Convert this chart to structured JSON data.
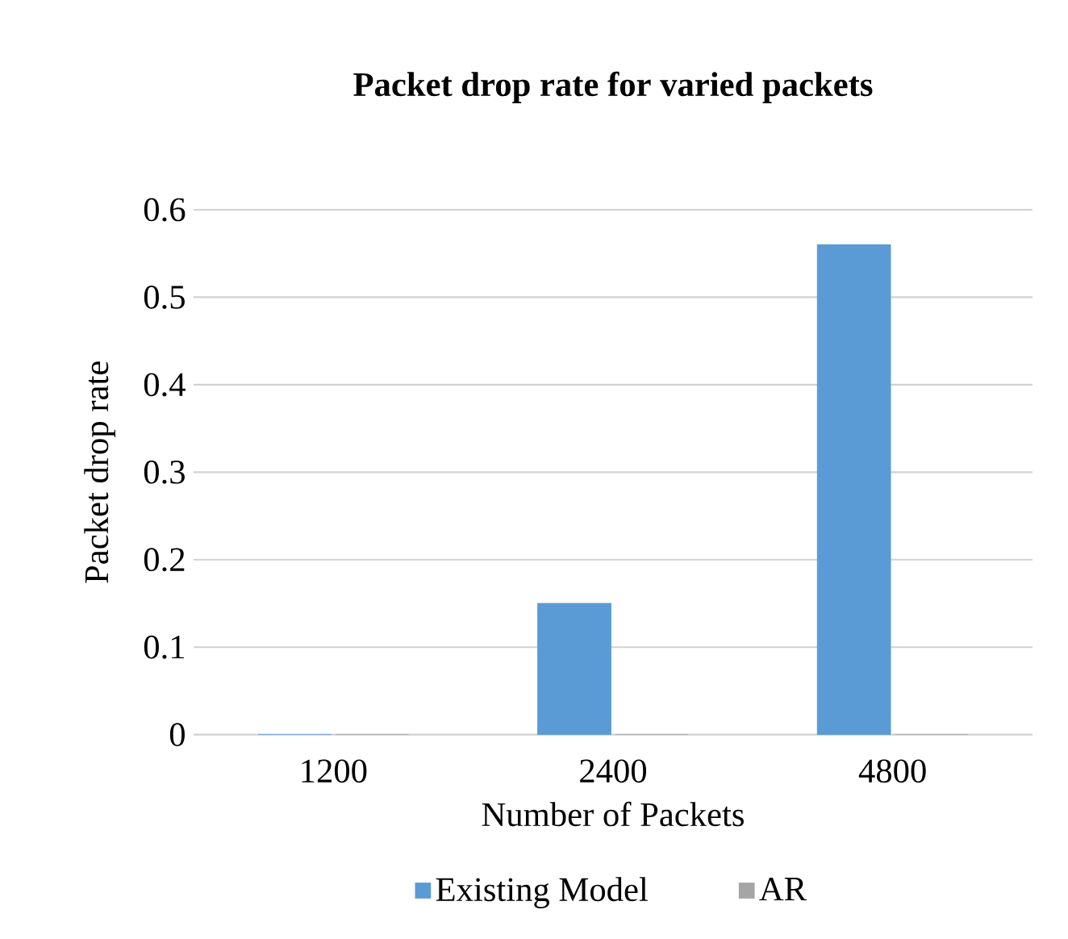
{
  "chart_data": {
    "type": "bar",
    "title": "Packet drop rate for varied packets",
    "xlabel": "Number of Packets",
    "ylabel": "Packet drop rate",
    "categories": [
      "1200",
      "2400",
      "4800"
    ],
    "series": [
      {
        "name": "Existing Model",
        "color": "#5b9bd5",
        "values": [
          0,
          0.15,
          0.56
        ]
      },
      {
        "name": "AR",
        "color": "#a5a5a5",
        "values": [
          0,
          0,
          0
        ]
      }
    ],
    "ylim": [
      0,
      0.6
    ],
    "yticks": [
      0,
      0.1,
      0.2,
      0.3,
      0.4,
      0.5,
      0.6
    ],
    "grid": "y",
    "legend": "bottom"
  }
}
